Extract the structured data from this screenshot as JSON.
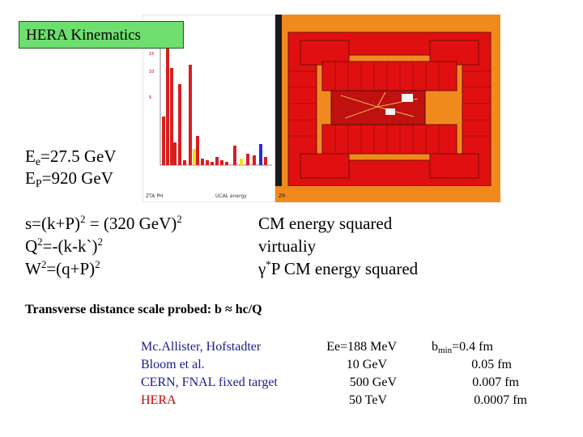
{
  "title": "HERA Kinematics",
  "event_display": {
    "axis_ticks": [
      "15",
      "10",
      "5"
    ],
    "bottom_left_label": "ZTA PH",
    "bottom_mid_label": "UCAL energy",
    "bottom_right_label": "ZR"
  },
  "beams": {
    "electron": {
      "prefix": "E",
      "sub": "e",
      "value": "=27.5 GeV"
    },
    "proton": {
      "prefix": "E",
      "sub": "P",
      "value": "=920 GeV"
    }
  },
  "equations": [
    {
      "text_a": "s=(k+P)",
      "sup_a": "2",
      "text_b": " = (320 GeV)",
      "sup_b": "2"
    },
    {
      "text_a": "Q",
      "sup_a": "2",
      "text_b": "=-(k-k`)",
      "sup_b": "2"
    },
    {
      "text_a": "W",
      "sup_a": "2",
      "text_b": "=(q+P)",
      "sup_b": "2"
    }
  ],
  "meanings": {
    "m1": "CM energy squared",
    "m2": "virtualiy",
    "m3_gamma": "γ",
    "m3_sup": "*",
    "m3_rest": "P CM energy squared"
  },
  "transverse": "Transverse distance scale probed: b ≈ hc/Q",
  "experiments": [
    {
      "name": "Mc.Allister, Hofstadter",
      "energy": "Ee=188 MeV",
      "b_value": "=0.4 fm"
    },
    {
      "name": "Bloom et al.",
      "energy": "10 GeV",
      "b_value": "0.05 fm"
    },
    {
      "name": "CERN, FNAL fixed target",
      "energy": "500 GeV",
      "b_value": "0.007 fm"
    },
    {
      "name": "HERA",
      "energy": "50 TeV",
      "b_value": "0.0007 fm"
    }
  ],
  "b_label": {
    "prefix": "b",
    "sub": "min"
  },
  "colors": {
    "title_box": "#6ede6e",
    "name_blue": "#1a1a8c",
    "name_red": "#cc0000",
    "detector_orange": "#f08a1e",
    "detector_red": "#e01010",
    "hist_red": "#d81e1e",
    "hist_yellow": "#f0e020",
    "hist_blue": "#2a2ae0"
  }
}
